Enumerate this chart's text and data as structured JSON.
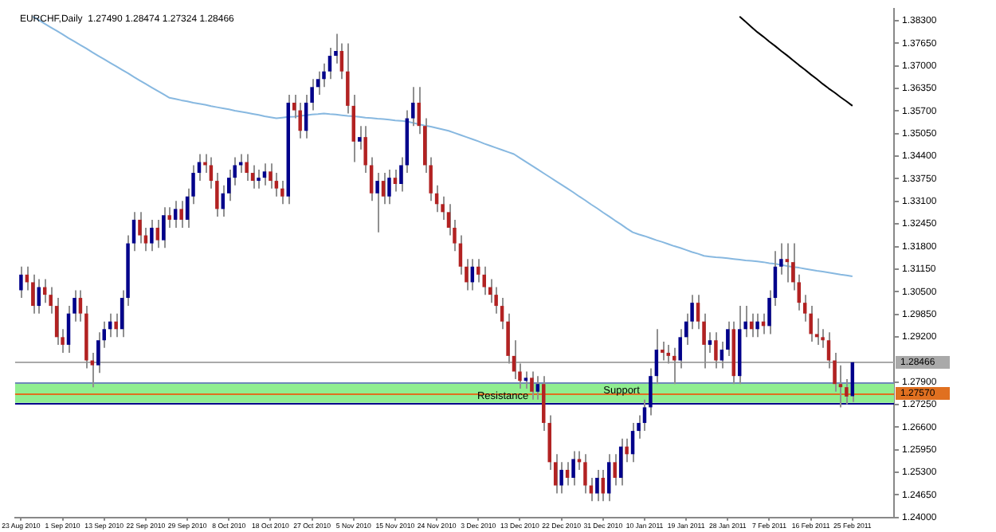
{
  "chart_data": {
    "type": "candlestick",
    "title": "EURCHF,Daily  1.27490 1.28474 1.27324 1.28466",
    "categories": [
      "23 Aug 2010",
      null,
      null,
      null,
      null,
      null,
      null,
      "1 Sep 2010",
      null,
      null,
      null,
      null,
      null,
      null,
      "13 Sep 2010",
      null,
      null,
      null,
      null,
      null,
      null,
      "22 Sep 2010",
      null,
      null,
      null,
      null,
      null,
      null,
      "29 Sep 2010",
      null,
      null,
      null,
      null,
      null,
      null,
      "8 Oct 2010",
      null,
      null,
      null,
      null,
      null,
      null,
      "18 Oct 2010",
      null,
      null,
      null,
      null,
      null,
      null,
      "27 Oct 2010",
      null,
      null,
      null,
      null,
      null,
      null,
      "5 Nov 2010",
      null,
      null,
      null,
      null,
      null,
      null,
      "15 Nov 2010",
      null,
      null,
      null,
      null,
      null,
      null,
      "24 Nov 2010",
      null,
      null,
      null,
      null,
      null,
      null,
      "3 Dec 2010",
      null,
      null,
      null,
      null,
      null,
      null,
      "13 Dec 2010",
      null,
      null,
      null,
      null,
      null,
      null,
      "22 Dec 2010",
      null,
      null,
      null,
      null,
      null,
      null,
      "31 Dec 2010",
      null,
      null,
      null,
      null,
      null,
      null,
      "10 Jan 2011",
      null,
      null,
      null,
      null,
      null,
      null,
      "19 Jan 2011",
      null,
      null,
      null,
      null,
      null,
      null,
      "28 Jan 2011",
      null,
      null,
      null,
      null,
      null,
      null,
      "7 Feb 2011",
      null,
      null,
      null,
      null,
      null,
      null,
      "16 Feb 2011",
      null,
      null,
      null,
      null,
      null,
      null,
      "25 Feb 2011"
    ],
    "ohlc": [
      [
        1.3054,
        1.3122,
        1.3032,
        1.3099
      ],
      [
        1.3099,
        1.3122,
        1.3054,
        1.3077
      ],
      [
        1.3077,
        1.3099,
        1.2987,
        1.3009
      ],
      [
        1.3009,
        1.3086,
        1.2987,
        1.3063
      ],
      [
        1.3063,
        1.3086,
        1.3018,
        1.3041
      ],
      [
        1.3041,
        1.3063,
        1.2987,
        1.3009
      ],
      [
        1.3009,
        1.3032,
        1.2897,
        1.2919
      ],
      [
        1.2919,
        1.2942,
        1.2874,
        1.2897
      ],
      [
        1.2897,
        1.3009,
        1.2874,
        1.2987
      ],
      [
        1.2987,
        1.3054,
        1.2964,
        1.3032
      ],
      [
        1.3032,
        1.3054,
        1.2964,
        1.2987
      ],
      [
        1.2987,
        1.3009,
        1.2829,
        1.2852
      ],
      [
        1.2852,
        1.2874,
        1.2775,
        1.2838
      ],
      [
        1.2838,
        1.2933,
        1.2816,
        1.291
      ],
      [
        1.291,
        1.2964,
        1.2888,
        1.2942
      ],
      [
        1.2942,
        1.2987,
        1.2919,
        1.2964
      ],
      [
        1.2964,
        1.2987,
        1.2919,
        1.2942
      ],
      [
        1.2942,
        1.3054,
        1.2919,
        1.3032
      ],
      [
        1.3032,
        1.3212,
        1.3009,
        1.3189
      ],
      [
        1.3189,
        1.3279,
        1.3167,
        1.3257
      ],
      [
        1.3257,
        1.3279,
        1.3189,
        1.3212
      ],
      [
        1.3212,
        1.3234,
        1.3167,
        1.3189
      ],
      [
        1.3189,
        1.3257,
        1.3167,
        1.3234
      ],
      [
        1.3234,
        1.3257,
        1.3176,
        1.3198
      ],
      [
        1.3198,
        1.3293,
        1.3176,
        1.327
      ],
      [
        1.327,
        1.3293,
        1.3234,
        1.3257
      ],
      [
        1.3257,
        1.3311,
        1.3234,
        1.3288
      ],
      [
        1.3288,
        1.3311,
        1.3234,
        1.3257
      ],
      [
        1.3257,
        1.3347,
        1.3234,
        1.3324
      ],
      [
        1.3324,
        1.3414,
        1.3302,
        1.3392
      ],
      [
        1.3392,
        1.3446,
        1.3369,
        1.3423
      ],
      [
        1.3423,
        1.3446,
        1.3392,
        1.3414
      ],
      [
        1.3414,
        1.3437,
        1.3347,
        1.3369
      ],
      [
        1.3369,
        1.3392,
        1.3266,
        1.3288
      ],
      [
        1.3288,
        1.3356,
        1.3266,
        1.3333
      ],
      [
        1.3333,
        1.3401,
        1.3311,
        1.3378
      ],
      [
        1.3378,
        1.3437,
        1.3356,
        1.3414
      ],
      [
        1.3414,
        1.3446,
        1.3392,
        1.3423
      ],
      [
        1.3423,
        1.3446,
        1.3369,
        1.3392
      ],
      [
        1.3392,
        1.3414,
        1.3347,
        1.3369
      ],
      [
        1.3369,
        1.3401,
        1.3347,
        1.3378
      ],
      [
        1.3378,
        1.3419,
        1.3356,
        1.3396
      ],
      [
        1.3396,
        1.3419,
        1.3347,
        1.3369
      ],
      [
        1.3369,
        1.3392,
        1.3324,
        1.3347
      ],
      [
        1.3347,
        1.3369,
        1.3302,
        1.3324
      ],
      [
        1.3324,
        1.3617,
        1.3302,
        1.3594
      ],
      [
        1.3594,
        1.3617,
        1.3549,
        1.3572
      ],
      [
        1.3572,
        1.3594,
        1.3491,
        1.3513
      ],
      [
        1.3513,
        1.3617,
        1.3491,
        1.3594
      ],
      [
        1.3594,
        1.3662,
        1.3572,
        1.3639
      ],
      [
        1.3639,
        1.3684,
        1.3617,
        1.3662
      ],
      [
        1.3662,
        1.3707,
        1.3639,
        1.3684
      ],
      [
        1.3684,
        1.3752,
        1.3662,
        1.3729
      ],
      [
        1.3729,
        1.3792,
        1.3707,
        1.3743
      ],
      [
        1.3743,
        1.3765,
        1.3662,
        1.3684
      ],
      [
        1.3684,
        1.3765,
        1.3563,
        1.3585
      ],
      [
        1.3585,
        1.3617,
        1.3423,
        1.3482
      ],
      [
        1.3482,
        1.3527,
        1.3459,
        1.3495
      ],
      [
        1.3495,
        1.3527,
        1.3392,
        1.3414
      ],
      [
        1.3414,
        1.3437,
        1.3311,
        1.3333
      ],
      [
        1.3333,
        1.3392,
        1.3221,
        1.3369
      ],
      [
        1.3369,
        1.3392,
        1.3302,
        1.3324
      ],
      [
        1.3324,
        1.3401,
        1.3302,
        1.3378
      ],
      [
        1.3378,
        1.3401,
        1.3338,
        1.336
      ],
      [
        1.336,
        1.3437,
        1.3338,
        1.3414
      ],
      [
        1.3414,
        1.3572,
        1.3392,
        1.3549
      ],
      [
        1.3549,
        1.3639,
        1.3527,
        1.3594
      ],
      [
        1.3594,
        1.3639,
        1.3504,
        1.3527
      ],
      [
        1.3527,
        1.3549,
        1.3392,
        1.3414
      ],
      [
        1.3414,
        1.3437,
        1.3311,
        1.3333
      ],
      [
        1.3333,
        1.3356,
        1.3279,
        1.3302
      ],
      [
        1.3302,
        1.3324,
        1.3257,
        1.3279
      ],
      [
        1.3279,
        1.3302,
        1.3212,
        1.3234
      ],
      [
        1.3234,
        1.3257,
        1.3167,
        1.3189
      ],
      [
        1.3189,
        1.3212,
        1.3099,
        1.3122
      ],
      [
        1.3122,
        1.3144,
        1.3054,
        1.3077
      ],
      [
        1.3077,
        1.3144,
        1.3054,
        1.3122
      ],
      [
        1.3122,
        1.3144,
        1.3077,
        1.3099
      ],
      [
        1.3099,
        1.3122,
        1.3041,
        1.3063
      ],
      [
        1.3063,
        1.3086,
        1.3018,
        1.3041
      ],
      [
        1.3041,
        1.3063,
        1.2987,
        1.3009
      ],
      [
        1.3009,
        1.3032,
        1.2942,
        1.2964
      ],
      [
        1.2964,
        1.2987,
        1.2843,
        1.2865
      ],
      [
        1.2865,
        1.291,
        1.2798,
        1.282
      ],
      [
        1.282,
        1.2843,
        1.2771,
        1.2793
      ],
      [
        1.2793,
        1.282,
        1.2771,
        1.2802
      ],
      [
        1.2802,
        1.282,
        1.2739,
        1.2762
      ],
      [
        1.2762,
        1.2807,
        1.2739,
        1.2784
      ],
      [
        1.2784,
        1.2807,
        1.2649,
        1.2672
      ],
      [
        1.2672,
        1.2694,
        1.2537,
        1.2559
      ],
      [
        1.2559,
        1.2582,
        1.2469,
        1.2492
      ],
      [
        1.2492,
        1.2559,
        1.2469,
        1.2537
      ],
      [
        1.2537,
        1.2559,
        1.2492,
        1.2514
      ],
      [
        1.2514,
        1.2591,
        1.2492,
        1.2568
      ],
      [
        1.2568,
        1.2591,
        1.2537,
        1.2559
      ],
      [
        1.2559,
        1.2582,
        1.2469,
        1.2492
      ],
      [
        1.2492,
        1.2514,
        1.2447,
        1.2469
      ],
      [
        1.2469,
        1.2537,
        1.2447,
        1.2514
      ],
      [
        1.2514,
        1.2537,
        1.2447,
        1.2469
      ],
      [
        1.2469,
        1.2582,
        1.2447,
        1.2559
      ],
      [
        1.2559,
        1.2582,
        1.2492,
        1.2514
      ],
      [
        1.2514,
        1.2627,
        1.2492,
        1.2604
      ],
      [
        1.2604,
        1.2627,
        1.2559,
        1.2582
      ],
      [
        1.2582,
        1.2672,
        1.2559,
        1.2649
      ],
      [
        1.2649,
        1.2694,
        1.2627,
        1.2672
      ],
      [
        1.2672,
        1.2739,
        1.2649,
        1.2717
      ],
      [
        1.2717,
        1.2829,
        1.2694,
        1.2807
      ],
      [
        1.2807,
        1.2942,
        1.2784,
        1.2883
      ],
      [
        1.2883,
        1.2906,
        1.2852,
        1.2874
      ],
      [
        1.2874,
        1.2897,
        1.2843,
        1.2865
      ],
      [
        1.2865,
        1.2888,
        1.2784,
        1.2852
      ],
      [
        1.2852,
        1.2942,
        1.2829,
        1.2919
      ],
      [
        1.2919,
        1.2987,
        1.2897,
        1.2964
      ],
      [
        1.2964,
        1.3041,
        1.2942,
        1.3018
      ],
      [
        1.3018,
        1.3041,
        1.2942,
        1.2964
      ],
      [
        1.2964,
        1.2987,
        1.2829,
        1.2897
      ],
      [
        1.2897,
        1.2933,
        1.2874,
        1.291
      ],
      [
        1.291,
        1.2933,
        1.2829,
        1.2852
      ],
      [
        1.2852,
        1.2906,
        1.2829,
        1.2883
      ],
      [
        1.2883,
        1.2964,
        1.2865,
        1.2942
      ],
      [
        1.2942,
        1.2964,
        1.2784,
        1.2807
      ],
      [
        1.2807,
        1.3009,
        1.2784,
        1.2942
      ],
      [
        1.2942,
        1.3009,
        1.2919,
        1.2964
      ],
      [
        1.2964,
        1.2987,
        1.2919,
        1.2942
      ],
      [
        1.2942,
        1.2987,
        1.2919,
        1.2964
      ],
      [
        1.2964,
        1.2987,
        1.2928,
        1.2951
      ],
      [
        1.2951,
        1.3054,
        1.2928,
        1.3032
      ],
      [
        1.3032,
        1.3167,
        1.3009,
        1.3122
      ],
      [
        1.3122,
        1.3189,
        1.3099,
        1.3144
      ],
      [
        1.3144,
        1.3189,
        1.3077,
        1.3135
      ],
      [
        1.3135,
        1.3189,
        1.3054,
        1.3077
      ],
      [
        1.3077,
        1.3099,
        1.2996,
        1.3018
      ],
      [
        1.3018,
        1.3041,
        1.2964,
        1.2987
      ],
      [
        1.2987,
        1.3009,
        1.2906,
        1.2928
      ],
      [
        1.2928,
        1.2973,
        1.2897,
        1.2919
      ],
      [
        1.2919,
        1.2942,
        1.2888,
        1.291
      ],
      [
        1.291,
        1.2933,
        1.2829,
        1.2852
      ],
      [
        1.2852,
        1.2874,
        1.2762,
        1.2784
      ],
      [
        1.2784,
        1.2838,
        1.2717,
        1.2775
      ],
      [
        1.2775,
        1.2798,
        1.2726,
        1.2748
      ],
      [
        1.2749,
        1.28474,
        1.27324,
        1.28466
      ]
    ],
    "colors": [
      "#00008b",
      "#b22222",
      "#b22222",
      "#00008b",
      "#b22222",
      "#b22222",
      "#b22222",
      "#b22222",
      "#00008b",
      "#00008b",
      "#b22222",
      "#b22222",
      "#b22222",
      "#00008b",
      "#00008b",
      "#00008b",
      "#b22222",
      "#00008b",
      "#00008b",
      "#00008b",
      "#b22222",
      "#b22222",
      "#00008b",
      "#b22222",
      "#00008b",
      "#b22222",
      "#00008b",
      "#b22222",
      "#00008b",
      "#00008b",
      "#00008b",
      "#b22222",
      "#b22222",
      "#b22222",
      "#00008b",
      "#00008b",
      "#00008b",
      "#00008b",
      "#b22222",
      "#b22222",
      "#00008b",
      "#00008b",
      "#b22222",
      "#b22222",
      "#b22222",
      "#00008b",
      "#b22222",
      "#b22222",
      "#00008b",
      "#00008b",
      "#00008b",
      "#00008b",
      "#00008b",
      "#00008b",
      "#b22222",
      "#b22222",
      "#b22222",
      "#00008b",
      "#b22222",
      "#b22222",
      "#00008b",
      "#b22222",
      "#00008b",
      "#b22222",
      "#00008b",
      "#00008b",
      "#00008b",
      "#b22222",
      "#b22222",
      "#b22222",
      "#b22222",
      "#b22222",
      "#b22222",
      "#b22222",
      "#b22222",
      "#b22222",
      "#00008b",
      "#b22222",
      "#b22222",
      "#b22222",
      "#b22222",
      "#b22222",
      "#b22222",
      "#b22222",
      "#b22222",
      "#00008b",
      "#b22222",
      "#00008b",
      "#b22222",
      "#b22222",
      "#b22222",
      "#00008b",
      "#b22222",
      "#00008b",
      "#b22222",
      "#b22222",
      "#b22222",
      "#00008b",
      "#b22222",
      "#00008b",
      "#b22222",
      "#00008b",
      "#b22222",
      "#00008b",
      "#00008b",
      "#00008b",
      "#00008b",
      "#00008b",
      "#b22222",
      "#b22222",
      "#b22222",
      "#00008b",
      "#00008b",
      "#00008b",
      "#b22222",
      "#b22222",
      "#00008b",
      "#b22222",
      "#00008b",
      "#00008b",
      "#b22222",
      "#00008b",
      "#00008b",
      "#b22222",
      "#00008b",
      "#b22222",
      "#00008b",
      "#00008b",
      "#00008b",
      "#b22222",
      "#b22222",
      "#b22222",
      "#b22222",
      "#b22222",
      "#b22222",
      "#b22222",
      "#b22222",
      "#b22222",
      "#b22222",
      "#b22222",
      "#00008b"
    ],
    "series": [
      {
        "type": "line",
        "color": "#87b8e0",
        "values": [
          null,
          null,
          1.3842,
          1.3832,
          1.3821,
          1.3811,
          1.3801,
          1.3791,
          1.378,
          1.377,
          1.376,
          1.375,
          1.3739,
          1.3729,
          1.3719,
          1.3709,
          1.3699,
          1.3689,
          1.3679,
          1.3668,
          1.3658,
          1.3648,
          1.3638,
          1.3628,
          1.3618,
          1.3608,
          1.3605,
          1.3601,
          1.3598,
          1.3594,
          1.3591,
          1.3588,
          1.3584,
          1.3581,
          1.3578,
          1.3575,
          1.3571,
          1.3568,
          1.3565,
          1.3562,
          1.3559,
          1.3555,
          1.3552,
          1.3549,
          1.3551,
          1.3553,
          1.3554,
          1.3556,
          1.3558,
          1.356,
          1.3561,
          1.3563,
          1.3561,
          1.356,
          1.3558,
          1.3556,
          1.3555,
          1.3553,
          1.3551,
          1.355,
          1.3548,
          1.3547,
          1.3545,
          1.3543,
          1.3542,
          1.354,
          1.3536,
          1.3532,
          1.3528,
          1.3525,
          1.3521,
          1.3517,
          1.3513,
          1.3507,
          1.3501,
          1.3495,
          1.3489,
          1.3483,
          1.3476,
          1.347,
          1.3464,
          1.3458,
          1.3452,
          1.3446,
          1.3435,
          1.3424,
          1.3413,
          1.3402,
          1.3391,
          1.338,
          1.3369,
          1.3358,
          1.3347,
          1.3336,
          1.3324,
          1.3313,
          1.3301,
          1.329,
          1.3278,
          1.3267,
          1.3255,
          1.3244,
          1.3232,
          1.3221,
          1.3215,
          1.321,
          1.3204,
          1.3198,
          1.3193,
          1.3187,
          1.3181,
          1.3176,
          1.317,
          1.3164,
          1.3159,
          1.3153,
          1.3151,
          1.3149,
          1.3148,
          1.3146,
          1.3144,
          1.3142,
          1.314,
          1.3139,
          1.3137,
          1.3135,
          1.3132,
          1.313,
          1.3127,
          1.3124,
          1.3121,
          1.3119,
          1.3116,
          1.3113,
          1.311,
          1.3108,
          1.3105,
          1.3102,
          1.3099,
          1.3097,
          1.3094
        ]
      },
      {
        "type": "line",
        "color": "#000000",
        "values": [
          null,
          null,
          null,
          null,
          null,
          null,
          null,
          null,
          null,
          null,
          null,
          null,
          null,
          null,
          null,
          null,
          null,
          null,
          null,
          null,
          null,
          null,
          null,
          null,
          null,
          null,
          null,
          null,
          null,
          null,
          null,
          null,
          null,
          null,
          null,
          null,
          null,
          null,
          null,
          null,
          null,
          null,
          null,
          null,
          null,
          null,
          null,
          null,
          null,
          null,
          null,
          null,
          null,
          null,
          null,
          null,
          null,
          null,
          null,
          null,
          null,
          null,
          null,
          null,
          null,
          null,
          null,
          null,
          null,
          null,
          null,
          null,
          null,
          null,
          null,
          null,
          null,
          null,
          null,
          null,
          null,
          null,
          null,
          null,
          null,
          null,
          null,
          null,
          null,
          null,
          null,
          null,
          null,
          null,
          null,
          null,
          null,
          null,
          null,
          null,
          null,
          null,
          null,
          null,
          null,
          null,
          null,
          null,
          null,
          null,
          null,
          null,
          null,
          null,
          null,
          null,
          null,
          null,
          null,
          null,
          null,
          1.3842,
          1.3827,
          1.3812,
          1.3797,
          1.3784,
          1.377,
          1.3757,
          1.3743,
          1.373,
          1.3716,
          1.3702,
          1.3689,
          1.3675,
          1.3662,
          1.3648,
          1.3635,
          1.3623,
          1.361,
          1.3598,
          1.3585
        ]
      }
    ],
    "ylim": [
      1.24,
      1.3864
    ],
    "yticks": [
      {
        "value": 1.24,
        "label": "1.24000"
      },
      {
        "value": 1.2465,
        "label": "1.24650"
      },
      {
        "value": 1.253,
        "label": "1.25300"
      },
      {
        "value": 1.2595,
        "label": "1.25950"
      },
      {
        "value": 1.266,
        "label": "1.26600"
      },
      {
        "value": 1.2725,
        "label": "1.27250"
      },
      {
        "value": 1.279,
        "label": "1.27900"
      },
      {
        "value": 1.292,
        "label": "1.29200"
      },
      {
        "value": 1.2985,
        "label": "1.29850"
      },
      {
        "value": 1.305,
        "label": "1.30500"
      },
      {
        "value": 1.3115,
        "label": "1.31150"
      },
      {
        "value": 1.318,
        "label": "1.31800"
      },
      {
        "value": 1.3245,
        "label": "1.32450"
      },
      {
        "value": 1.331,
        "label": "1.33100"
      },
      {
        "value": 1.3375,
        "label": "1.33750"
      },
      {
        "value": 1.344,
        "label": "1.34400"
      },
      {
        "value": 1.3505,
        "label": "1.35050"
      },
      {
        "value": 1.357,
        "label": "1.35700"
      },
      {
        "value": 1.3635,
        "label": "1.36350"
      },
      {
        "value": 1.37,
        "label": "1.37000"
      },
      {
        "value": 1.3765,
        "label": "1.37650"
      },
      {
        "value": 1.383,
        "label": "1.38300"
      }
    ],
    "bands": [
      {
        "axis": "y",
        "from": 1.273,
        "to": 1.2788,
        "color": "#90ee90"
      }
    ],
    "ref_lines": [
      {
        "axis": "y",
        "value": 1.28466,
        "label": "1.28466",
        "color": "#a9a9a9"
      },
      {
        "axis": "y",
        "value": 1.2757,
        "label": "1.27570",
        "color": "#e07020"
      },
      {
        "axis": "y",
        "value": 1.2788,
        "label": "Support",
        "color": "#7088b8"
      },
      {
        "axis": "y",
        "value": 1.273,
        "label": "Resistance",
        "color": "#00008b"
      }
    ],
    "grid": false,
    "legend": false,
    "marker": "none",
    "line_style": "solid"
  }
}
